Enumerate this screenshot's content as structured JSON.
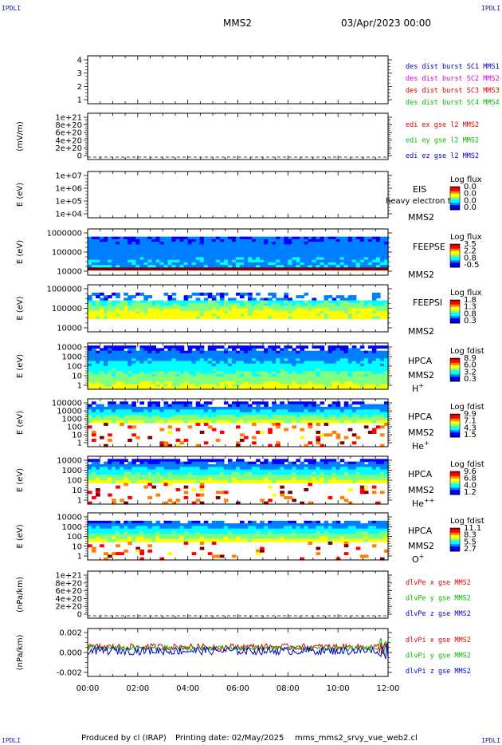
{
  "header": {
    "corner_tl": "IPDLI",
    "corner_tr": "IPDLI",
    "corner_bl": "IPDLI",
    "corner_br": "IPDLI",
    "spacecraft": "MMS2",
    "date": "03/Apr/2023 00:00"
  },
  "footer": {
    "produced_by": "Produced by cl (IRAP)",
    "printing_date": "Printing date: 02/May/2025",
    "script_name": "mms_mms2_srvy_vue_web2.cl"
  },
  "time_axis": {
    "labels": [
      "00:00",
      "02:00",
      "04:00",
      "06:00",
      "08:00",
      "10:00",
      "12:00"
    ]
  },
  "colors": {
    "blue": "#0000cc",
    "magenta": "#dd00dd",
    "red": "#dd0000",
    "green": "#00bb00",
    "spectrogram_palette": [
      "#000080",
      "#0000ff",
      "#0080ff",
      "#00ffff",
      "#80ff80",
      "#ffff00",
      "#ff8000",
      "#ff0000",
      "#800000"
    ]
  },
  "chart_data": [
    {
      "type": "line",
      "ylabel": "",
      "yticks": [
        "4",
        "3",
        "2",
        "1"
      ],
      "ylim": [
        0.5,
        4.5
      ],
      "legend": [
        {
          "text": "des dist burst SC1 MMS1",
          "color": "blue"
        },
        {
          "text": "des dist burst SC2 MMS2",
          "color": "magenta"
        },
        {
          "text": "des dist burst SC3 MMS3",
          "color": "red"
        },
        {
          "text": "des dist burst SC4 MMS4",
          "color": "green"
        }
      ],
      "series": []
    },
    {
      "type": "line",
      "ylabel": "(mV/m)",
      "yticks": [
        "1e+21",
        "8e+20",
        "6e+20",
        "4e+20",
        "2e+20",
        "0"
      ],
      "ylim": [
        0,
        1e+21
      ],
      "zero_line": 0,
      "legend": [
        {
          "text": "edi ex gse l2 MMS2",
          "color": "red"
        },
        {
          "text": "edi ey gse l2 MMS2",
          "color": "green"
        },
        {
          "text": "edi ez gse l2 MMS2",
          "color": "blue"
        }
      ],
      "series": []
    },
    {
      "type": "heatmap",
      "ylabel": "E (eV)",
      "yticks": [
        "1e+07",
        "1e+06",
        "1e+05",
        "1e+04"
      ],
      "ylim": [
        10000,
        10000000
      ],
      "scale": "log",
      "instrument": "EIS",
      "instrument_note": "heavy electron to",
      "spacecraft": "MMS2",
      "colorbar_title": "Log flux",
      "colorbar_ticks": [
        "0.0",
        "0.0",
        "0.0",
        "0.0"
      ],
      "filled": false
    },
    {
      "type": "heatmap",
      "ylabel": "E (eV)",
      "yticks": [
        "1000000",
        "100000",
        "10000"
      ],
      "ylim": [
        10000,
        1000000
      ],
      "scale": "log",
      "instrument": "FEEPSE",
      "spacecraft": "MMS2",
      "colorbar_title": "Log flux",
      "colorbar_ticks": [
        "3.5",
        "2.2",
        "0.8",
        "-0.5"
      ],
      "filled": true
    },
    {
      "type": "heatmap",
      "ylabel": "E (eV)",
      "yticks": [
        "1000000",
        "100000",
        "10000"
      ],
      "ylim": [
        10000,
        1000000
      ],
      "scale": "log",
      "instrument": "FEEPSI",
      "spacecraft": "MMS2",
      "colorbar_title": "Log flux",
      "colorbar_ticks": [
        "1.8",
        "1.3",
        "0.8",
        "0.3"
      ],
      "filled": true
    },
    {
      "type": "heatmap",
      "ylabel": "E (eV)",
      "yticks": [
        "10000",
        "1000",
        "100",
        "10",
        "1"
      ],
      "ylim": [
        1,
        30000
      ],
      "scale": "log",
      "instrument": "HPCA",
      "spacecraft": "MMS2",
      "species": "H",
      "species_sup": "+",
      "colorbar_title": "Log fdist",
      "colorbar_ticks": [
        "8.9",
        "6.0",
        "3.2",
        "0.3"
      ],
      "filled": true
    },
    {
      "type": "heatmap",
      "ylabel": "E (eV)",
      "yticks": [
        "100000",
        "10000",
        "1000",
        "100",
        "10",
        "1"
      ],
      "ylim": [
        1,
        100000
      ],
      "scale": "log",
      "instrument": "HPCA",
      "spacecraft": "MMS2",
      "species": "He",
      "species_sup": "+",
      "colorbar_title": "Log fdist",
      "colorbar_ticks": [
        "9.9",
        "7.1",
        "4.3",
        "1.5"
      ],
      "filled": true
    },
    {
      "type": "heatmap",
      "ylabel": "E (eV)",
      "yticks": [
        "10000",
        "1000",
        "100",
        "10",
        "1"
      ],
      "ylim": [
        1,
        30000
      ],
      "scale": "log",
      "instrument": "HPCA",
      "spacecraft": "MMS2",
      "species": "He",
      "species_sup": "++",
      "colorbar_title": "Log fdist",
      "colorbar_ticks": [
        "9.6",
        "6.8",
        "4.0",
        "1.2"
      ],
      "filled": true
    },
    {
      "type": "heatmap",
      "ylabel": "E (eV)",
      "yticks": [
        "10000",
        "1000",
        "100",
        "10",
        "1"
      ],
      "ylim": [
        1,
        30000
      ],
      "scale": "log",
      "instrument": "HPCA",
      "spacecraft": "MMS2",
      "species": "O",
      "species_sup": "+",
      "colorbar_title": "Log fdist",
      "colorbar_ticks": [
        "11.1",
        "8.3",
        "5.5",
        "2.7"
      ],
      "filled": true
    },
    {
      "type": "line",
      "ylabel": "(nPa/km)",
      "yticks": [
        "1e+21",
        "8e+20",
        "6e+20",
        "4e+20",
        "2e+20",
        "0"
      ],
      "ylim": [
        0,
        1e+21
      ],
      "zero_line": 0,
      "legend": [
        {
          "text": "dlvPe x gse MMS2",
          "color": "red"
        },
        {
          "text": "dlvPe y gse MMS2",
          "color": "green"
        },
        {
          "text": "dlvPe z gse MMS2",
          "color": "blue"
        }
      ],
      "series": []
    },
    {
      "type": "line",
      "ylabel": "(nPa/km)",
      "yticks": [
        "0.002",
        "0.000",
        "-0.002"
      ],
      "ylim": [
        -0.0035,
        0.0025
      ],
      "legend": [
        {
          "text": "dlvPi x gse MMS2",
          "color": "red"
        },
        {
          "text": "dlvPi y gse MMS2",
          "color": "green"
        },
        {
          "text": "dlvPi z gse MMS2",
          "color": "blue"
        }
      ],
      "series": [
        {
          "color": "red",
          "level": 0.0002,
          "noise": 0.0004
        },
        {
          "color": "green",
          "level": 5e-05,
          "noise": 0.0003
        },
        {
          "color": "blue",
          "level": -0.0003,
          "noise": 0.0005
        }
      ]
    }
  ]
}
